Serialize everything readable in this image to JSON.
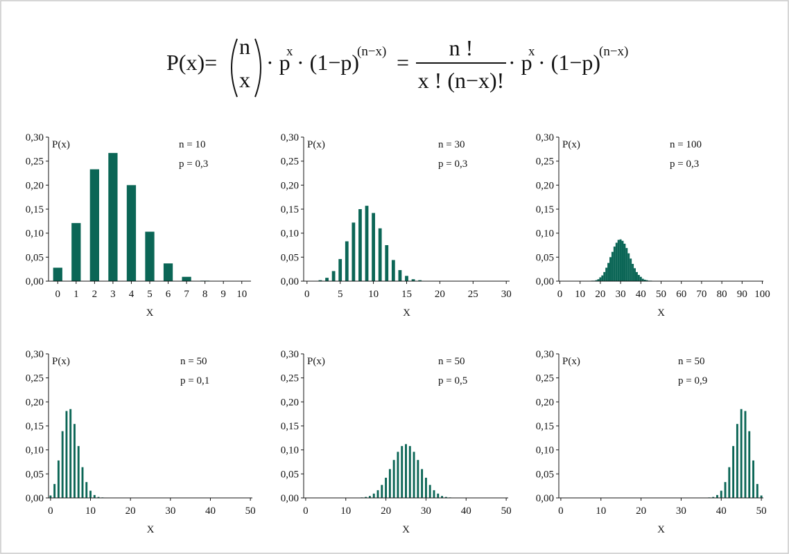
{
  "formula": {
    "lhs": "P(x)=",
    "binom_top": "n",
    "binom_bottom": "x",
    "term1": "· p",
    "exp1": "x",
    "term2": "· (1−p)",
    "exp2": "(n−x)",
    "eq": "=",
    "numerator": "n !",
    "denominator": "x ! (n−x)!",
    "term3": "· p",
    "exp3": "x",
    "term4": "· (1−p)",
    "exp4": "(n−x)"
  },
  "chart_data": [
    {
      "type": "bar",
      "ylabel": "P(x)",
      "xlabel": "X",
      "annotations": [
        "n = 10",
        "p = 0,3"
      ],
      "color": "#0b6656",
      "x": [
        0,
        1,
        2,
        3,
        4,
        5,
        6,
        7,
        8,
        9,
        10
      ],
      "values": [
        0.028,
        0.121,
        0.233,
        0.267,
        0.2,
        0.103,
        0.037,
        0.009,
        0.001,
        0,
        0
      ],
      "xlim": [
        -0.5,
        10.5
      ],
      "xticks": [
        0,
        1,
        2,
        3,
        4,
        5,
        6,
        7,
        8,
        9,
        10
      ],
      "ylim": [
        0,
        0.3
      ],
      "yticks": [
        {
          "value": 0,
          "label": "0,00"
        },
        {
          "value": 0.05,
          "label": "0,05"
        },
        {
          "value": 0.1,
          "label": "0,10"
        },
        {
          "value": 0.15,
          "label": "0,15"
        },
        {
          "value": 0.2,
          "label": "0,20"
        },
        {
          "value": 0.25,
          "label": "0,25"
        },
        {
          "value": 0.3,
          "label": "0,30"
        }
      ]
    },
    {
      "type": "bar",
      "ylabel": "P(x)",
      "xlabel": "X",
      "annotations": [
        "n = 30",
        "p = 0,3"
      ],
      "color": "#0b6656",
      "x": [
        0,
        1,
        2,
        3,
        4,
        5,
        6,
        7,
        8,
        9,
        10,
        11,
        12,
        13,
        14,
        15,
        16,
        17,
        18,
        19,
        20,
        21,
        22,
        23,
        24,
        25,
        26,
        27,
        28,
        29,
        30
      ],
      "values": [
        0,
        0,
        0.002,
        0.007,
        0.021,
        0.046,
        0.083,
        0.122,
        0.15,
        0.157,
        0.142,
        0.11,
        0.075,
        0.044,
        0.023,
        0.011,
        0.004,
        0.002,
        0,
        0,
        0,
        0,
        0,
        0,
        0,
        0,
        0,
        0,
        0,
        0,
        0
      ],
      "xlim": [
        -0.5,
        30.5
      ],
      "xticks": [
        0,
        5,
        10,
        15,
        20,
        25,
        30
      ],
      "ylim": [
        0,
        0.3
      ],
      "yticks": [
        {
          "value": 0,
          "label": "0,00"
        },
        {
          "value": 0.05,
          "label": "0,05"
        },
        {
          "value": 0.1,
          "label": "0,10"
        },
        {
          "value": 0.15,
          "label": "0,15"
        },
        {
          "value": 0.2,
          "label": "0,20"
        },
        {
          "value": 0.25,
          "label": "0,25"
        },
        {
          "value": 0.3,
          "label": "0,30"
        }
      ]
    },
    {
      "type": "bar",
      "ylabel": "P(x)",
      "xlabel": "X",
      "annotations": [
        "n = 100",
        "p = 0,3"
      ],
      "color": "#0b6656",
      "x": [
        0,
        1,
        2,
        3,
        4,
        5,
        6,
        7,
        8,
        9,
        10,
        11,
        12,
        13,
        14,
        15,
        16,
        17,
        18,
        19,
        20,
        21,
        22,
        23,
        24,
        25,
        26,
        27,
        28,
        29,
        30,
        31,
        32,
        33,
        34,
        35,
        36,
        37,
        38,
        39,
        40,
        41,
        42,
        43,
        44,
        45,
        46,
        47,
        48,
        49,
        50,
        51,
        52,
        53,
        54,
        55,
        56,
        57,
        58,
        59,
        60,
        61,
        62,
        63,
        64,
        65,
        66,
        67,
        68,
        69,
        70,
        71,
        72,
        73,
        74,
        75,
        76,
        77,
        78,
        79,
        80,
        81,
        82,
        83,
        84,
        85,
        86,
        87,
        88,
        89,
        90,
        91,
        92,
        93,
        94,
        95,
        96,
        97,
        98,
        99,
        100
      ],
      "values": [
        0,
        0,
        0,
        0,
        0,
        0,
        0,
        0,
        0,
        0,
        0,
        0,
        0,
        0,
        0,
        0,
        0.001,
        0.001,
        0.002,
        0.004,
        0.008,
        0.012,
        0.019,
        0.028,
        0.038,
        0.05,
        0.061,
        0.072,
        0.08,
        0.086,
        0.087,
        0.084,
        0.078,
        0.069,
        0.058,
        0.047,
        0.036,
        0.027,
        0.019,
        0.013,
        0.009,
        0.005,
        0.003,
        0.002,
        0.001,
        0.001,
        0,
        0,
        0,
        0,
        0,
        0,
        0,
        0,
        0,
        0,
        0,
        0,
        0,
        0,
        0,
        0,
        0,
        0,
        0,
        0,
        0,
        0,
        0,
        0,
        0,
        0,
        0,
        0,
        0,
        0,
        0,
        0,
        0,
        0,
        0,
        0,
        0,
        0,
        0,
        0,
        0,
        0,
        0,
        0,
        0,
        0,
        0,
        0,
        0,
        0,
        0,
        0,
        0,
        0,
        0
      ],
      "xlim": [
        -0.5,
        100.5
      ],
      "xticks": [
        0,
        10,
        20,
        30,
        40,
        50,
        60,
        70,
        80,
        90,
        100
      ],
      "ylim": [
        0,
        0.3
      ],
      "yticks": [
        {
          "value": 0,
          "label": "0,00"
        },
        {
          "value": 0.05,
          "label": "0,05"
        },
        {
          "value": 0.1,
          "label": "0,10"
        },
        {
          "value": 0.15,
          "label": "0,15"
        },
        {
          "value": 0.2,
          "label": "0,20"
        },
        {
          "value": 0.25,
          "label": "0,25"
        },
        {
          "value": 0.3,
          "label": "0,30"
        }
      ]
    },
    {
      "type": "bar",
      "ylabel": "P(x)",
      "xlabel": "X",
      "annotations": [
        "n = 50",
        "p = 0,1"
      ],
      "color": "#0b6656",
      "x": [
        0,
        1,
        2,
        3,
        4,
        5,
        6,
        7,
        8,
        9,
        10,
        11,
        12,
        13,
        14,
        15,
        16,
        17,
        18,
        19,
        20,
        21,
        22,
        23,
        24,
        25,
        26,
        27,
        28,
        29,
        30,
        31,
        32,
        33,
        34,
        35,
        36,
        37,
        38,
        39,
        40,
        41,
        42,
        43,
        44,
        45,
        46,
        47,
        48,
        49,
        50
      ],
      "values": [
        0.005,
        0.029,
        0.078,
        0.139,
        0.181,
        0.185,
        0.154,
        0.108,
        0.064,
        0.033,
        0.015,
        0.006,
        0.002,
        0.001,
        0,
        0,
        0,
        0,
        0,
        0,
        0,
        0,
        0,
        0,
        0,
        0,
        0,
        0,
        0,
        0,
        0,
        0,
        0,
        0,
        0,
        0,
        0,
        0,
        0,
        0,
        0,
        0,
        0,
        0,
        0,
        0,
        0,
        0,
        0,
        0,
        0
      ],
      "xlim": [
        -0.5,
        50.5
      ],
      "xticks": [
        0,
        10,
        20,
        30,
        40,
        50
      ],
      "ylim": [
        0,
        0.3
      ],
      "yticks": [
        {
          "value": 0,
          "label": "0,00"
        },
        {
          "value": 0.05,
          "label": "0,05"
        },
        {
          "value": 0.1,
          "label": "0,10"
        },
        {
          "value": 0.15,
          "label": "0,15"
        },
        {
          "value": 0.2,
          "label": "0,20"
        },
        {
          "value": 0.25,
          "label": "0,25"
        },
        {
          "value": 0.3,
          "label": "0,30"
        }
      ]
    },
    {
      "type": "bar",
      "ylabel": "P(x)",
      "xlabel": "X",
      "annotations": [
        "n = 50",
        "p = 0,5"
      ],
      "color": "#0b6656",
      "x": [
        0,
        1,
        2,
        3,
        4,
        5,
        6,
        7,
        8,
        9,
        10,
        11,
        12,
        13,
        14,
        15,
        16,
        17,
        18,
        19,
        20,
        21,
        22,
        23,
        24,
        25,
        26,
        27,
        28,
        29,
        30,
        31,
        32,
        33,
        34,
        35,
        36,
        37,
        38,
        39,
        40,
        41,
        42,
        43,
        44,
        45,
        46,
        47,
        48,
        49,
        50
      ],
      "values": [
        0,
        0,
        0,
        0,
        0,
        0,
        0,
        0,
        0,
        0,
        0,
        0,
        0,
        0,
        0.001,
        0.002,
        0.004,
        0.009,
        0.016,
        0.027,
        0.042,
        0.06,
        0.079,
        0.096,
        0.108,
        0.112,
        0.108,
        0.096,
        0.079,
        0.06,
        0.042,
        0.027,
        0.016,
        0.009,
        0.004,
        0.002,
        0.001,
        0,
        0,
        0,
        0,
        0,
        0,
        0,
        0,
        0,
        0,
        0,
        0,
        0,
        0
      ],
      "xlim": [
        -0.5,
        50.5
      ],
      "xticks": [
        0,
        10,
        20,
        30,
        40,
        50
      ],
      "ylim": [
        0,
        0.3
      ],
      "yticks": [
        {
          "value": 0,
          "label": "0,00"
        },
        {
          "value": 0.05,
          "label": "0,05"
        },
        {
          "value": 0.1,
          "label": "0,10"
        },
        {
          "value": 0.15,
          "label": "0,15"
        },
        {
          "value": 0.2,
          "label": "0,20"
        },
        {
          "value": 0.25,
          "label": "0,25"
        },
        {
          "value": 0.3,
          "label": "0,30"
        }
      ]
    },
    {
      "type": "bar",
      "ylabel": "P(x)",
      "xlabel": "X",
      "annotations": [
        "n = 50",
        "p = 0,9"
      ],
      "color": "#0b6656",
      "x": [
        0,
        1,
        2,
        3,
        4,
        5,
        6,
        7,
        8,
        9,
        10,
        11,
        12,
        13,
        14,
        15,
        16,
        17,
        18,
        19,
        20,
        21,
        22,
        23,
        24,
        25,
        26,
        27,
        28,
        29,
        30,
        31,
        32,
        33,
        34,
        35,
        36,
        37,
        38,
        39,
        40,
        41,
        42,
        43,
        44,
        45,
        46,
        47,
        48,
        49,
        50
      ],
      "values": [
        0,
        0,
        0,
        0,
        0,
        0,
        0,
        0,
        0,
        0,
        0,
        0,
        0,
        0,
        0,
        0,
        0,
        0,
        0,
        0,
        0,
        0,
        0,
        0,
        0,
        0,
        0,
        0,
        0,
        0,
        0,
        0,
        0,
        0,
        0,
        0,
        0,
        0.001,
        0.002,
        0.006,
        0.015,
        0.033,
        0.064,
        0.108,
        0.154,
        0.185,
        0.181,
        0.139,
        0.078,
        0.029,
        0.005
      ],
      "xlim": [
        -0.5,
        50.5
      ],
      "xticks": [
        0,
        10,
        20,
        30,
        40,
        50
      ],
      "ylim": [
        0,
        0.3
      ],
      "yticks": [
        {
          "value": 0,
          "label": "0,00"
        },
        {
          "value": 0.05,
          "label": "0,05"
        },
        {
          "value": 0.1,
          "label": "0,10"
        },
        {
          "value": 0.15,
          "label": "0,15"
        },
        {
          "value": 0.2,
          "label": "0,20"
        },
        {
          "value": 0.25,
          "label": "0,25"
        },
        {
          "value": 0.3,
          "label": "0,30"
        }
      ]
    }
  ]
}
